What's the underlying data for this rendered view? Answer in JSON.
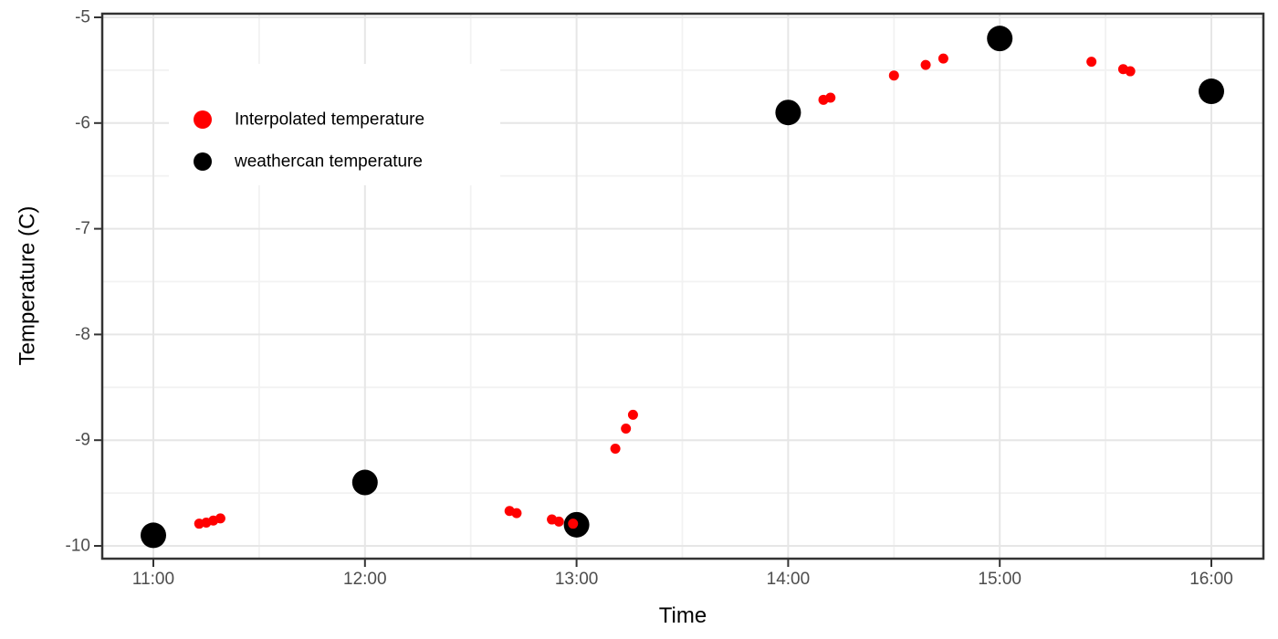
{
  "chart_data": {
    "type": "scatter",
    "title": "",
    "xlabel": "Time",
    "ylabel": "Temperature (C)",
    "x_ticks": [
      "11:00",
      "12:00",
      "13:00",
      "14:00",
      "15:00",
      "16:00"
    ],
    "y_ticks": [
      -5,
      -6,
      -7,
      -8,
      -9,
      -10
    ],
    "xlim": [
      "10:46",
      "16:15"
    ],
    "ylim": [
      -10.12,
      -4.97
    ],
    "grid": "major and minor gridlines, light gray on white, dark panel border",
    "legend_position": "inside top-left",
    "series": [
      {
        "name": "Interpolated temperature",
        "color": "#FF0000",
        "point_radius": 5.5,
        "points": [
          {
            "time": "11:13",
            "temp": -9.79
          },
          {
            "time": "11:15",
            "temp": -9.78
          },
          {
            "time": "11:17",
            "temp": -9.76
          },
          {
            "time": "11:19",
            "temp": -9.74
          },
          {
            "time": "12:41",
            "temp": -9.67
          },
          {
            "time": "12:43",
            "temp": -9.69
          },
          {
            "time": "12:53",
            "temp": -9.75
          },
          {
            "time": "12:55",
            "temp": -9.77
          },
          {
            "time": "12:59",
            "temp": -9.79
          },
          {
            "time": "13:11",
            "temp": -9.08
          },
          {
            "time": "13:14",
            "temp": -8.89
          },
          {
            "time": "13:16",
            "temp": -8.76
          },
          {
            "time": "14:10",
            "temp": -5.78
          },
          {
            "time": "14:12",
            "temp": -5.76
          },
          {
            "time": "14:30",
            "temp": -5.55
          },
          {
            "time": "14:39",
            "temp": -5.45
          },
          {
            "time": "14:44",
            "temp": -5.39
          },
          {
            "time": "15:26",
            "temp": -5.42
          },
          {
            "time": "15:35",
            "temp": -5.49
          },
          {
            "time": "15:37",
            "temp": -5.51
          }
        ]
      },
      {
        "name": "weathercan temperature",
        "color": "#000000",
        "point_radius": 14,
        "points": [
          {
            "time": "11:00",
            "temp": -9.9
          },
          {
            "time": "12:00",
            "temp": -9.4
          },
          {
            "time": "13:00",
            "temp": -9.8
          },
          {
            "time": "14:00",
            "temp": -5.9
          },
          {
            "time": "15:00",
            "temp": -5.2
          },
          {
            "time": "16:00",
            "temp": -5.7
          }
        ]
      }
    ],
    "theme": {
      "background": "#FFFFFF",
      "panel_border": "#333333",
      "grid_major": "#E6E6E6",
      "grid_minor": "#F2F2F2",
      "tick_color": "#333333",
      "tick_label_color": "#4D4D4D",
      "title_color": "#000000"
    }
  }
}
